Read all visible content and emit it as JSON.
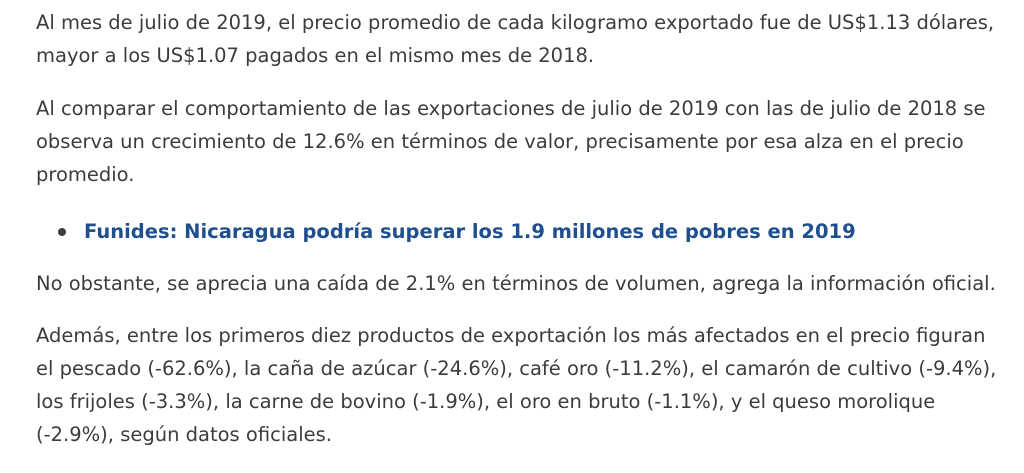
{
  "article": {
    "paragraphs": [
      "Al mes de julio de 2019, el precio promedio de cada kilogramo exportado fue de US$1.13 dólares, mayor a los US$1.07 pagados en el mismo mes de 2018.",
      "Al comparar el comportamiento de las exportaciones de julio de 2019 con las de julio de 2018 se observa un crecimiento de 12.6% en términos de valor, precisamente por esa alza en el precio promedio.",
      "No obstante, se aprecia una caída de 2.1% en términos de volumen, agrega la información oficial.",
      "Además, entre los primeros diez productos de exportación los más afectados en el precio figuran el pescado (-62.6%), la caña de azúcar (-24.6%), café oro (-11.2%), el camarón de cultivo (-9.4%), los frijoles (-3.3%), la carne de bovino (-1.9%), el oro en bruto (-1.1%), y el queso morolique (-2.9%), según datos oficiales."
    ],
    "related_links": [
      "Funides: Nicaragua podría superar los 1.9 millones de pobres en 2019"
    ]
  },
  "colors": {
    "text": "#3c3c3c",
    "link": "#1f4f8f",
    "background": "#ffffff"
  }
}
